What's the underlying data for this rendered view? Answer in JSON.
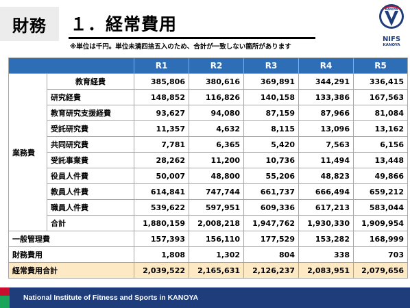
{
  "header": {
    "category": "財務",
    "title": "１．経常費用",
    "note": "※単位は千円。単位未満四捨五入のため、合計が一致しない箇所があります"
  },
  "logo": {
    "word": "NIFS",
    "sub": "KANOYA",
    "badge": "KANOYA",
    "colors": {
      "primary": "#1f3d7a",
      "accent": "#c8102e"
    }
  },
  "table": {
    "columns": [
      "R1",
      "R2",
      "R3",
      "R4",
      "R5"
    ],
    "group_label": "業務費",
    "operating_items": [
      {
        "label": "教育経費",
        "values": [
          "385,806",
          "380,616",
          "369,891",
          "344,291",
          "336,415"
        ]
      },
      {
        "label": "研究経費",
        "values": [
          "148,852",
          "116,826",
          "140,158",
          "133,386",
          "167,563"
        ]
      },
      {
        "label": "教育研究支援経費",
        "values": [
          "93,627",
          "94,080",
          "87,159",
          "87,966",
          "81,084"
        ]
      },
      {
        "label": "受託研究費",
        "values": [
          "11,357",
          "4,632",
          "8,115",
          "13,096",
          "13,162"
        ]
      },
      {
        "label": "共同研究費",
        "values": [
          "7,781",
          "6,365",
          "5,420",
          "7,563",
          "6,156"
        ]
      },
      {
        "label": "受託事業費",
        "values": [
          "28,262",
          "11,200",
          "10,736",
          "11,494",
          "13,448"
        ]
      },
      {
        "label": "役員人件費",
        "values": [
          "50,007",
          "48,800",
          "55,206",
          "48,823",
          "49,866"
        ]
      },
      {
        "label": "教員人件費",
        "values": [
          "614,841",
          "747,744",
          "661,737",
          "666,494",
          "659,212"
        ]
      },
      {
        "label": "職員人件費",
        "values": [
          "539,622",
          "597,951",
          "609,336",
          "617,213",
          "583,044"
        ]
      },
      {
        "label": "合計",
        "values": [
          "1,880,159",
          "2,008,218",
          "1,947,762",
          "1,930,330",
          "1,909,954"
        ]
      }
    ],
    "other_rows": [
      {
        "label": "一般管理費",
        "values": [
          "157,393",
          "156,110",
          "177,529",
          "153,282",
          "168,999"
        ]
      },
      {
        "label": "財務費用",
        "values": [
          "1,808",
          "1,302",
          "804",
          "338",
          "703"
        ]
      }
    ],
    "total_row": {
      "label": "経常費用合計",
      "values": [
        "2,039,522",
        "2,165,631",
        "2,126,237",
        "2,083,951",
        "2,079,656"
      ]
    },
    "colors": {
      "header": "#2e6eb7",
      "total": "#fde9c4"
    }
  },
  "footer": {
    "text": "National Institute of Fitness and Sports in KANOYA",
    "color": "#1f3d7a"
  }
}
